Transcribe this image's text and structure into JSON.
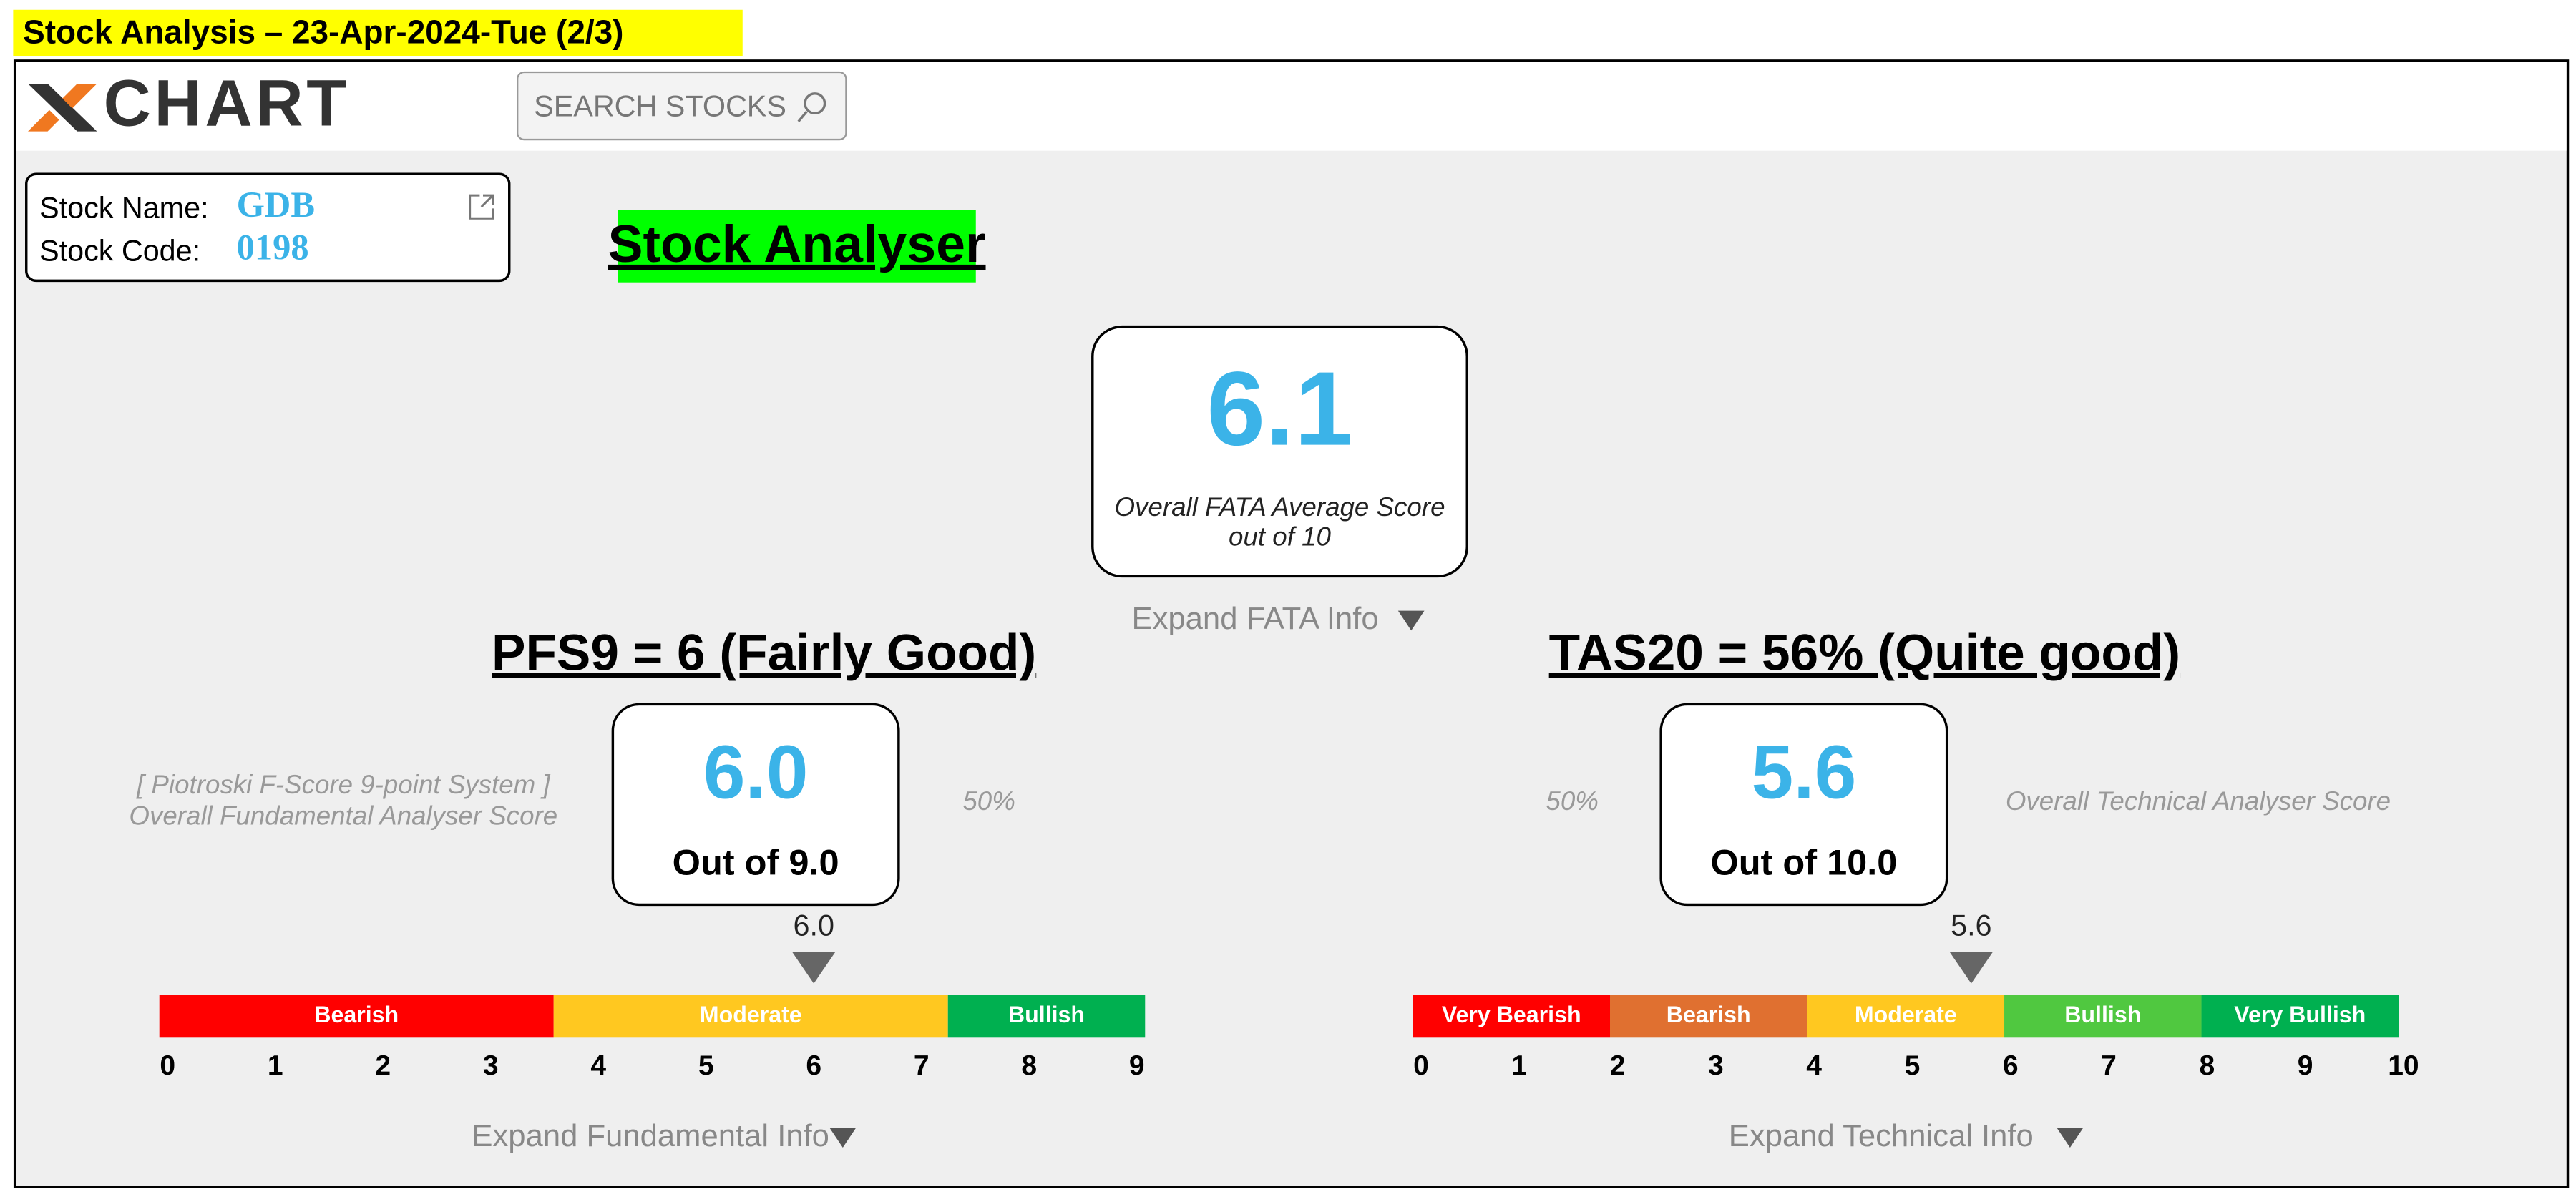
{
  "header": {
    "title": "Stock Analysis – 23-Apr-2024-Tue (2/3)"
  },
  "nav": {
    "logo": "CHART",
    "search_placeholder": "SEARCH STOCKS"
  },
  "stock": {
    "name_label": "Stock Name:",
    "name": "GDB",
    "code_label": "Stock Code:",
    "code": "0198"
  },
  "banner": "Stock Analyser",
  "overall": {
    "score": "6.1",
    "caption_line1": "Overall FATA Average Score",
    "caption_line2": "out of 10",
    "expand": "Expand FATA Info"
  },
  "fundamental": {
    "heading": "PFS9 = 6 (Fairly Good)",
    "score": "6.0",
    "out_of": "Out of 9.0",
    "side_line1": "[ Piotroski F-Score 9-point System ]",
    "side_line2": "Overall Fundamental Analyser Score",
    "percent": "50%",
    "pointer": {
      "value": 6,
      "label": "6.0"
    },
    "scale": {
      "range": [
        0,
        9
      ],
      "ticks": [
        0,
        1,
        2,
        3,
        4,
        5,
        6,
        7,
        8,
        9
      ],
      "zones": [
        {
          "label": "Bearish",
          "color": "#ff0000"
        },
        {
          "label": "Moderate",
          "color": "#ffc820"
        },
        {
          "label": "Bullish",
          "color": "#00b050"
        }
      ]
    },
    "expand": "Expand Fundamental Info"
  },
  "technical": {
    "heading": "TAS20 = 56% (Quite good)",
    "score": "5.6",
    "out_of": "Out of 10.0",
    "side_line1": "Overall Technical Analyser Score",
    "percent": "50%",
    "pointer": {
      "value": 5.6,
      "label": "5.6"
    },
    "scale": {
      "range": [
        0,
        10
      ],
      "ticks": [
        0,
        1,
        2,
        3,
        4,
        5,
        6,
        7,
        8,
        9,
        10
      ],
      "zones": [
        {
          "label": "Very Bearish",
          "color": "#ff0000"
        },
        {
          "label": "Bearish",
          "color": "#e07030"
        },
        {
          "label": "Moderate",
          "color": "#ffc820"
        },
        {
          "label": "Bullish",
          "color": "#50c840"
        },
        {
          "label": "Very Bullish",
          "color": "#00b050"
        }
      ]
    },
    "expand": "Expand Technical Info"
  }
}
